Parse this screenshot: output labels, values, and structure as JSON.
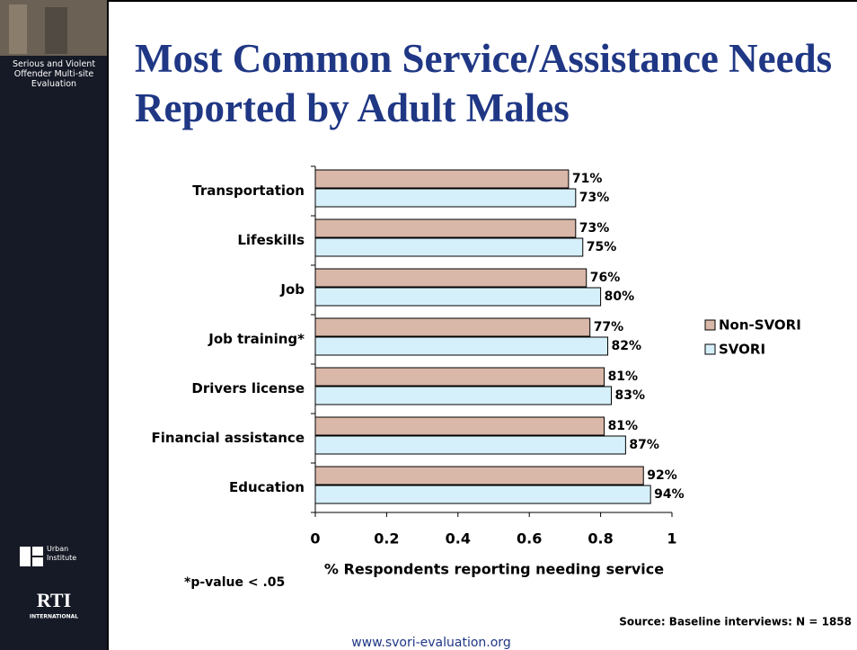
{
  "sidebar": {
    "project": "Serious and Violent Offender Multi-site Evaluation",
    "partner1": "Urban Institute",
    "partner2": "RTI",
    "partner2_sub": "INTERNATIONAL"
  },
  "chart_data": {
    "type": "bar",
    "orientation": "horizontal",
    "title": "Most Common Service/Assistance Needs Reported by Adult Males",
    "categories": [
      "Transportation",
      "Lifeskills",
      "Job",
      "Job training*",
      "Drivers license",
      "Financial assistance",
      "Education"
    ],
    "series": [
      {
        "name": "Non-SVORI",
        "color": "#d9b7a9",
        "values": [
          0.71,
          0.73,
          0.76,
          0.77,
          0.81,
          0.81,
          0.92
        ],
        "value_labels": [
          "71%",
          "73%",
          "76%",
          "77%",
          "81%",
          "81%",
          "92%"
        ]
      },
      {
        "name": "SVORI",
        "color": "#d6f0fb",
        "values": [
          0.73,
          0.75,
          0.8,
          0.82,
          0.83,
          0.87,
          0.94
        ],
        "value_labels": [
          "73%",
          "75%",
          "80%",
          "82%",
          "83%",
          "87%",
          "94%"
        ]
      }
    ],
    "xlim": [
      0,
      1
    ],
    "xticks": [
      0,
      0.2,
      0.4,
      0.6,
      0.8,
      1
    ],
    "xlabel": "% Respondents reporting needing service",
    "legend": "right",
    "footnote": "*p-value < .05",
    "source": "Source: Baseline interviews: N = 1858"
  },
  "footer": "www.svori-evaluation.org"
}
